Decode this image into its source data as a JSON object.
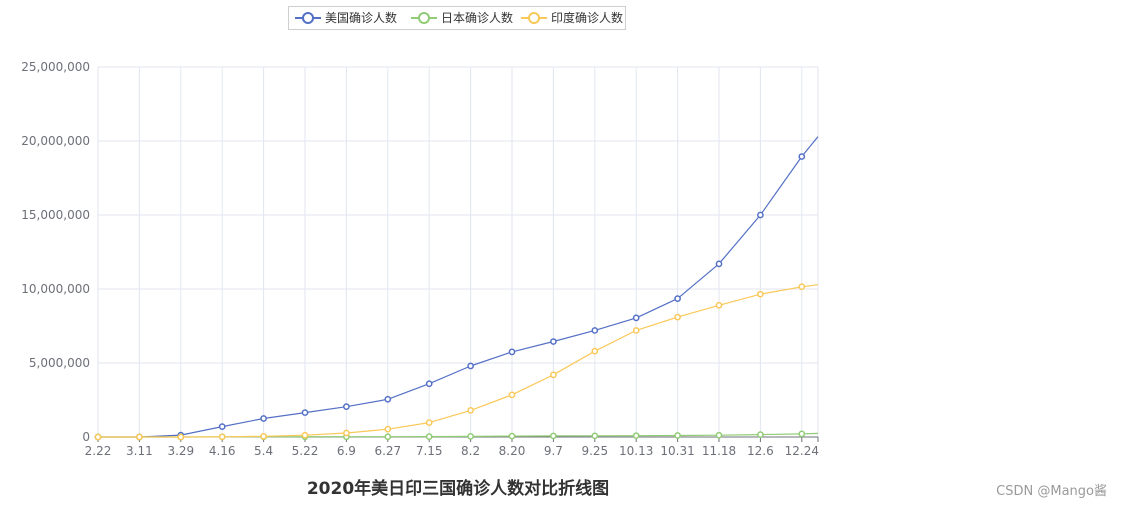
{
  "chart_data": {
    "type": "line",
    "title": "2020年美日印三国确诊人数对比折线图",
    "xlabel": "",
    "ylabel": "",
    "ylim": [
      0,
      25000000
    ],
    "y_ticks": [
      "0",
      "5,000,000",
      "10,000,000",
      "15,000,000",
      "20,000,000",
      "25,000,000"
    ],
    "categories": [
      "2.22",
      "3.11",
      "3.29",
      "4.16",
      "5.4",
      "5.22",
      "6.9",
      "6.27",
      "7.15",
      "8.2",
      "8.20",
      "9.7",
      "9.25",
      "10.13",
      "10.31",
      "11.18",
      "12.6",
      "12.24"
    ],
    "legend_position": "top",
    "grid": true,
    "series": [
      {
        "name": "美国确诊人数",
        "color": "#5470c6",
        "values": [
          30,
          1000,
          130000,
          700000,
          1250000,
          1650000,
          2050000,
          2550000,
          3600000,
          4800000,
          5750000,
          6450000,
          7200000,
          8050000,
          9350000,
          11700000,
          15000000,
          18950000
        ],
        "end_value": 20300000
      },
      {
        "name": "日本确诊人数",
        "color": "#91cc75",
        "values": [
          130,
          600,
          2000,
          10000,
          15000,
          17000,
          18000,
          19000,
          24000,
          40000,
          60000,
          73000,
          80000,
          90000,
          100000,
          120000,
          160000,
          210000
        ],
        "end_value": 240000
      },
      {
        "name": "印度确诊人数",
        "color": "#fac858",
        "values": [
          3,
          62,
          1000,
          13000,
          45000,
          120000,
          270000,
          530000,
          970000,
          1800000,
          2850000,
          4200000,
          5800000,
          7200000,
          8100000,
          8900000,
          9650000,
          10150000
        ],
        "end_value": 10290000
      }
    ]
  },
  "watermark": "CSDN @Mango酱"
}
